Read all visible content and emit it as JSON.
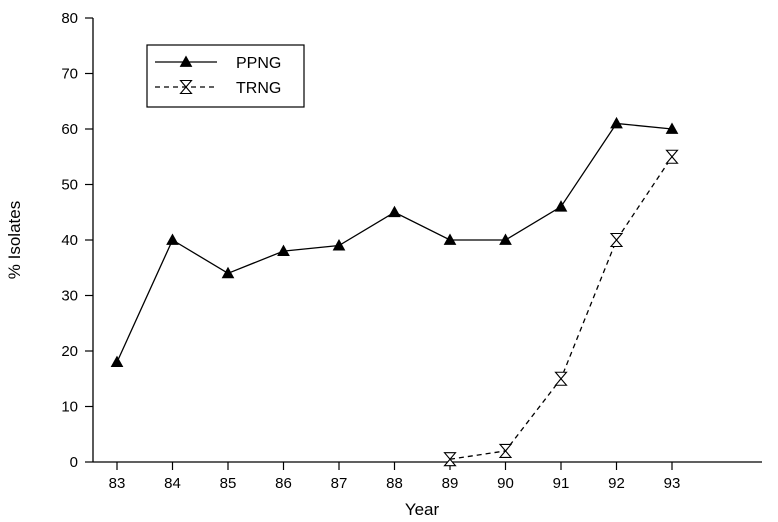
{
  "chart_data": {
    "type": "line",
    "title": "",
    "xlabel": "Year",
    "ylabel": "% Isolates",
    "categories": [
      "83",
      "84",
      "85",
      "86",
      "87",
      "88",
      "89",
      "90",
      "91",
      "92",
      "93"
    ],
    "ylim": [
      0,
      80
    ],
    "yticks": [
      0,
      10,
      20,
      30,
      40,
      50,
      60,
      70,
      80
    ],
    "grid": false,
    "legend_position": "top-left",
    "series": [
      {
        "name": "PPNG",
        "marker": "filled-triangle",
        "line_style": "solid",
        "color": "#000000",
        "values": [
          18,
          40,
          34,
          38,
          39,
          45,
          40,
          40,
          46,
          61,
          60
        ]
      },
      {
        "name": "TRNG",
        "marker": "hourglass",
        "line_style": "dashed",
        "color": "#000000",
        "values": [
          null,
          null,
          null,
          null,
          null,
          null,
          0.5,
          2,
          15,
          40,
          55
        ]
      }
    ]
  }
}
